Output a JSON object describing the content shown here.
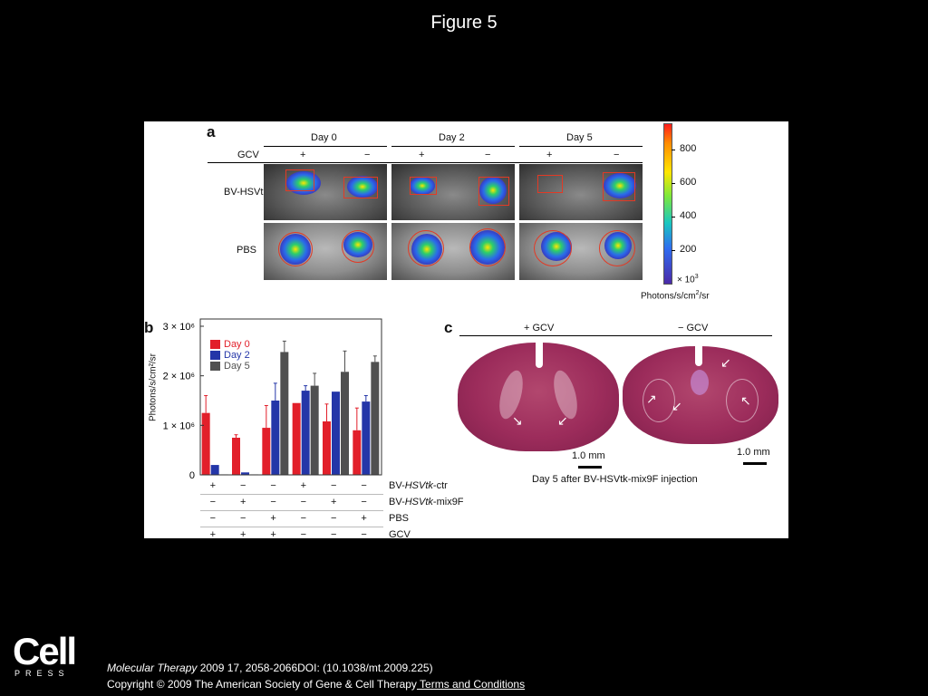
{
  "slide": {
    "title": "Figure 5"
  },
  "panel_a": {
    "label": "a",
    "day_labels": [
      "Day 0",
      "Day 2",
      "Day 5"
    ],
    "gcv_label": "GCV",
    "gcv_signs": [
      "+",
      "−",
      "+",
      "−",
      "+",
      "−"
    ],
    "row_labels": [
      "BV-HSVtk",
      "PBS"
    ],
    "colorbar": {
      "ticks": [
        "800",
        "600",
        "400",
        "200"
      ],
      "multiplier": "× 10",
      "multiplier_exp": "3",
      "unit_main": "Photons/s/cm",
      "unit_exp": "2",
      "unit_tail": "/sr"
    }
  },
  "panel_b": {
    "label": "b",
    "chart_data": {
      "type": "bar",
      "ylabel": "Photons/s/cm²/sr",
      "ylim": [
        0,
        3000000
      ],
      "yticks": [
        {
          "value": 0,
          "label": "0"
        },
        {
          "value": 1000000,
          "label": "1 × 10⁶"
        },
        {
          "value": 2000000,
          "label": "2 × 10⁶"
        },
        {
          "value": 3000000,
          "label": "3 × 10⁶"
        }
      ],
      "legend_position": "top-left",
      "series": [
        {
          "name": "Day 0",
          "color": "#e21f2a",
          "values": [
            1250000,
            750000,
            950000,
            1450000,
            1080000,
            900000
          ],
          "errors": [
            350000,
            60000,
            450000,
            0,
            350000,
            450000
          ]
        },
        {
          "name": "Day 2",
          "color": "#2436a8",
          "values": [
            200000,
            50000,
            1500000,
            1700000,
            1680000,
            1480000
          ],
          "errors": [
            0,
            0,
            350000,
            100000,
            0,
            120000
          ]
        },
        {
          "name": "Day 5",
          "color": "#505050",
          "values": [
            10000,
            10000,
            2480000,
            1800000,
            2080000,
            2280000
          ],
          "errors": [
            0,
            0,
            220000,
            250000,
            420000,
            120000
          ]
        }
      ],
      "group_count": 6,
      "condition_rows": [
        {
          "label": "BV-",
          "label_italic": "HSVtk",
          "label_tail": "-ctr",
          "signs": [
            "+",
            "−",
            "−",
            "+",
            "−",
            "−"
          ]
        },
        {
          "label": "BV-",
          "label_italic": "HSVtk",
          "label_tail": "-mix9F",
          "signs": [
            "−",
            "+",
            "−",
            "−",
            "+",
            "−"
          ]
        },
        {
          "label": "PBS",
          "label_italic": "",
          "label_tail": "",
          "signs": [
            "−",
            "−",
            "+",
            "−",
            "−",
            "+"
          ]
        },
        {
          "label": "GCV",
          "label_italic": "",
          "label_tail": "",
          "signs": [
            "+",
            "+",
            "+",
            "−",
            "−",
            "−"
          ]
        }
      ]
    }
  },
  "panel_c": {
    "label": "c",
    "left_header": "+ GCV",
    "right_header": "− GCV",
    "scale_left": "1.0 mm",
    "scale_right": "1.0 mm",
    "caption": "Day 5 after BV-HSVtk-mix9F injection"
  },
  "footer": {
    "journal": "Molecular Therapy",
    "citation": " 2009 17, 2058-2066DOI: (10.1038/mt.2009.225)",
    "copyright": "Copyright © 2009 The American Society of Gene & Cell Therapy",
    "terms_link": " Terms and Conditions",
    "logo_main": "Cell",
    "logo_sub": "PRESS"
  }
}
